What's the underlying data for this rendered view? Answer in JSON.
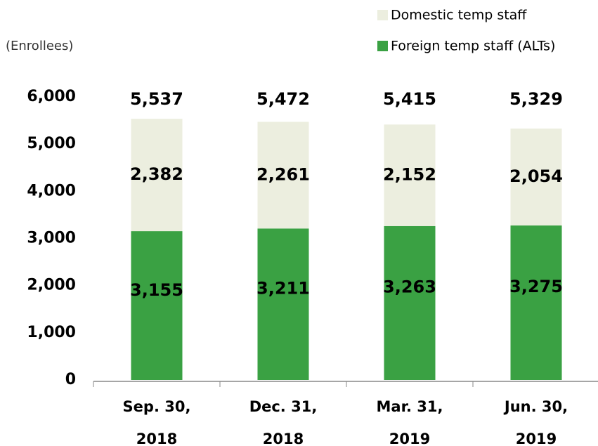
{
  "chart_data": {
    "type": "stacked_bar",
    "y_axis_label": "(Enrollees)",
    "categories": [
      "Sep. 30, 2018",
      "Dec. 31, 2018",
      "Mar. 31, 2019",
      "Jun. 30, 2019"
    ],
    "series": [
      {
        "name": "Foreign temp staff (ALTs)",
        "color": "#3aa143",
        "values": [
          3155,
          3211,
          3263,
          3275
        ],
        "value_labels": [
          "3,155",
          "3,211",
          "3,263",
          "3,275"
        ]
      },
      {
        "name": "Domestic temp staff",
        "color": "#eceedf",
        "values": [
          2382,
          2261,
          2152,
          2054
        ],
        "value_labels": [
          "2,382",
          "2,261",
          "2,152",
          "2,054"
        ]
      }
    ],
    "totals": [
      5537,
      5472,
      5415,
      5329
    ],
    "total_labels": [
      "5,537",
      "5,472",
      "5,415",
      "5,329"
    ],
    "ylim": [
      0,
      6000
    ],
    "yticks": [
      0,
      {
        "value": 1000,
        "label": "1,000"
      },
      {
        "value": 2000,
        "label": "2,000"
      },
      {
        "value": 3000,
        "label": "3,000"
      },
      {
        "value": 4000,
        "label": "4,000"
      },
      {
        "value": 5000,
        "label": "5,000"
      },
      {
        "value": 6000,
        "label": "6,000"
      }
    ],
    "grid": false
  }
}
